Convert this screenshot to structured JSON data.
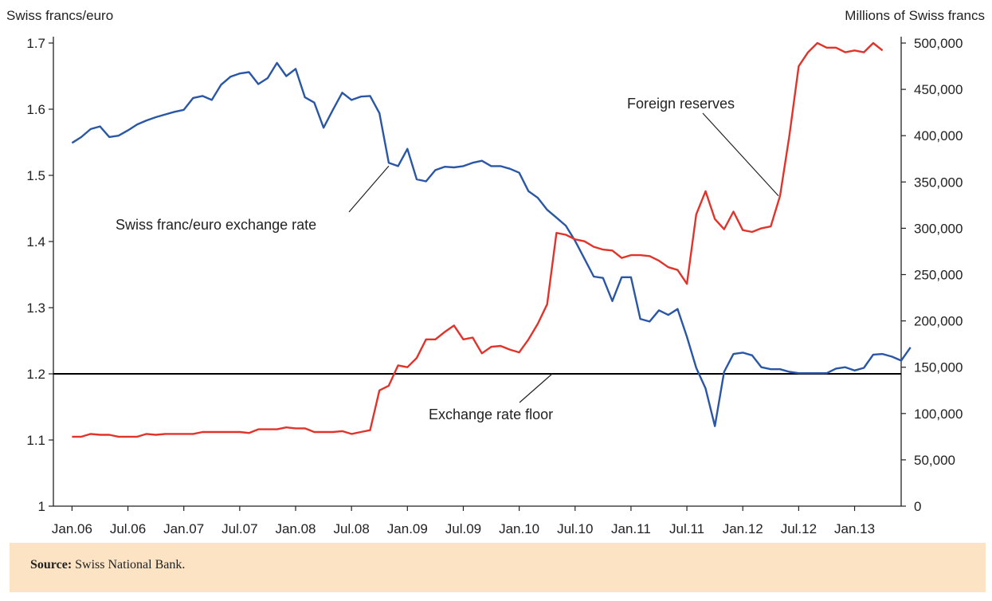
{
  "chart_data": {
    "type": "line",
    "left_axis_title": "Swiss francs/euro",
    "right_axis_title": "Millions of Swiss francs",
    "left_ylim": [
      1.0,
      1.7
    ],
    "left_yticks": [
      {
        "v": 1.0,
        "label": "1"
      },
      {
        "v": 1.1,
        "label": "1.1"
      },
      {
        "v": 1.2,
        "label": "1.2"
      },
      {
        "v": 1.3,
        "label": "1.3"
      },
      {
        "v": 1.4,
        "label": "1.4"
      },
      {
        "v": 1.5,
        "label": "1.5"
      },
      {
        "v": 1.6,
        "label": "1.6"
      },
      {
        "v": 1.7,
        "label": "1.7"
      }
    ],
    "right_ylim": [
      0,
      500000
    ],
    "right_yticks": [
      {
        "v": 0,
        "label": "0"
      },
      {
        "v": 50000,
        "label": "50,000"
      },
      {
        "v": 100000,
        "label": "100,000"
      },
      {
        "v": 150000,
        "label": "150,000"
      },
      {
        "v": 200000,
        "label": "200,000"
      },
      {
        "v": 250000,
        "label": "250,000"
      },
      {
        "v": 300000,
        "label": "300,000"
      },
      {
        "v": 350000,
        "label": "350,000"
      },
      {
        "v": 400000,
        "label": "400,000"
      },
      {
        "v": 450000,
        "label": "450,000"
      },
      {
        "v": 500000,
        "label": "500,000"
      }
    ],
    "xlim": [
      "2005-11",
      "2013-06"
    ],
    "x_ticks": [
      {
        "x": "2006-01",
        "label": "Jan.06"
      },
      {
        "x": "2006-07",
        "label": "Jul.06"
      },
      {
        "x": "2007-01",
        "label": "Jan.07"
      },
      {
        "x": "2007-07",
        "label": "Jul.07"
      },
      {
        "x": "2008-01",
        "label": "Jan.08"
      },
      {
        "x": "2008-07",
        "label": "Jul.08"
      },
      {
        "x": "2009-01",
        "label": "Jan.09"
      },
      {
        "x": "2009-07",
        "label": "Jul.09"
      },
      {
        "x": "2010-01",
        "label": "Jan.10"
      },
      {
        "x": "2010-07",
        "label": "Jul.10"
      },
      {
        "x": "2011-01",
        "label": "Jan.11"
      },
      {
        "x": "2011-07",
        "label": "Jul.11"
      },
      {
        "x": "2012-01",
        "label": "Jan.12"
      },
      {
        "x": "2012-07",
        "label": "Jul.12"
      },
      {
        "x": "2013-01",
        "label": "Jan.13"
      }
    ],
    "series": [
      {
        "name": "Swiss franc/euro exchange rate",
        "axis": "left",
        "color": "#2a56a6",
        "x_start": "2006-01",
        "values": [
          1.549,
          1.558,
          1.57,
          1.574,
          1.558,
          1.56,
          1.568,
          1.577,
          1.583,
          1.588,
          1.592,
          1.596,
          1.599,
          1.617,
          1.62,
          1.614,
          1.637,
          1.649,
          1.654,
          1.656,
          1.638,
          1.647,
          1.67,
          1.65,
          1.661,
          1.618,
          1.61,
          1.572,
          1.599,
          1.625,
          1.614,
          1.619,
          1.62,
          1.594,
          1.519,
          1.514,
          1.54,
          1.494,
          1.491,
          1.508,
          1.513,
          1.512,
          1.514,
          1.519,
          1.522,
          1.514,
          1.514,
          1.51,
          1.504,
          1.476,
          1.466,
          1.448,
          1.436,
          1.424,
          1.401,
          1.374,
          1.347,
          1.345,
          1.31,
          1.346,
          1.346,
          1.283,
          1.279,
          1.296,
          1.289,
          1.298,
          1.256,
          1.209,
          1.178,
          1.121,
          1.203,
          1.23,
          1.232,
          1.228,
          1.21,
          1.207,
          1.207,
          1.203,
          1.201,
          1.201,
          1.201,
          1.201,
          1.208,
          1.21,
          1.205,
          1.209,
          1.229,
          1.23,
          1.226,
          1.22,
          1.24
        ]
      },
      {
        "name": "Foreign reserves",
        "axis": "right",
        "color": "#e2332b",
        "x_start": "2006-01",
        "values": [
          75000,
          75000,
          78000,
          77000,
          77000,
          75000,
          75000,
          75000,
          78000,
          77000,
          78000,
          78000,
          78000,
          78000,
          80000,
          80000,
          80000,
          80000,
          80000,
          79000,
          83000,
          83000,
          83000,
          85000,
          84000,
          84000,
          80000,
          80000,
          80000,
          81000,
          78000,
          80000,
          82000,
          125000,
          130000,
          152000,
          150000,
          160000,
          180000,
          180000,
          188000,
          195000,
          180000,
          182000,
          165000,
          172000,
          173000,
          169000,
          166000,
          180000,
          197000,
          218000,
          295000,
          293000,
          288000,
          286000,
          280000,
          277000,
          276000,
          268000,
          271000,
          271000,
          270000,
          265000,
          258000,
          255000,
          240000,
          315000,
          340000,
          310000,
          299000,
          318000,
          298000,
          296000,
          300000,
          302000,
          335000,
          400000,
          475000,
          490000,
          500000,
          495000,
          495000,
          490000,
          492000,
          490000,
          500000,
          492000
        ]
      }
    ],
    "floor": {
      "value": 1.2,
      "axis": "left"
    },
    "annotations": {
      "exchange_rate": "Swiss franc/euro exchange rate",
      "reserves": "Foreign reserves",
      "floor": "Exchange rate floor"
    },
    "colors": {
      "exchange_rate": "#2a56a6",
      "reserves": "#e2332b",
      "floor": "#000000",
      "source_bg": "#fce3c3"
    }
  },
  "source": {
    "label": "Source:",
    "text": " Swiss National Bank."
  }
}
